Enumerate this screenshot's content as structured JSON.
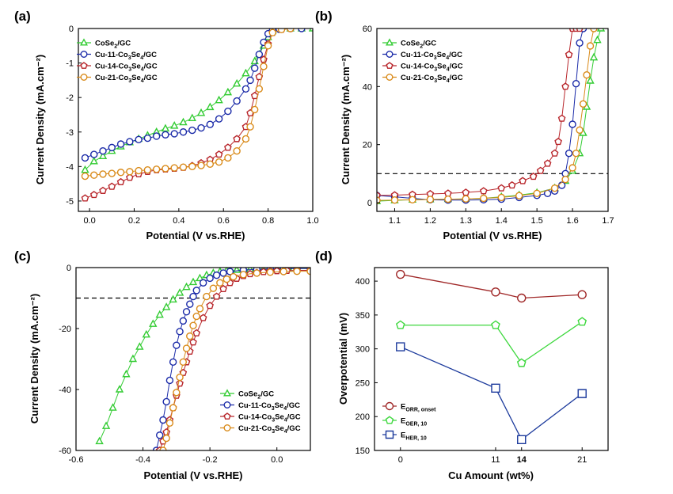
{
  "colors": {
    "green": "#33cc33",
    "blue": "#1a2aa8",
    "red": "#b8262b",
    "orange": "#d98a19",
    "dkred": "#a02828",
    "ltgreen": "#3ed83e",
    "navy": "#1c3a9c"
  },
  "chart_data": [
    {
      "id": "a",
      "panel_label": "(a)",
      "type": "line",
      "xlabel": "Potential (V vs.RHE)",
      "ylabel": "Current Density (mA.cm⁻²)",
      "xlim": [
        -0.05,
        1.0
      ],
      "ylim": [
        -5.3,
        0
      ],
      "xticks": [
        "0.0",
        "0.2",
        "0.4",
        "0.6",
        "0.8",
        "1.0"
      ],
      "yticks": [
        "0",
        "-1",
        "-2",
        "-3",
        "-4",
        "-5"
      ],
      "xtick_values": [
        0.0,
        0.2,
        0.4,
        0.6,
        0.8,
        1.0
      ],
      "ytick_values": [
        0,
        -1,
        -2,
        -3,
        -4,
        -5
      ],
      "legend_position": "top-left",
      "series": [
        {
          "name": "CoSe2/GC",
          "legend_text": "CoSe",
          "legend_sub": "2",
          "legend_tail": "/GC",
          "marker": "triangle",
          "color": "#33cc33",
          "x": [
            -0.02,
            0.02,
            0.06,
            0.1,
            0.14,
            0.18,
            0.22,
            0.26,
            0.3,
            0.34,
            0.38,
            0.42,
            0.46,
            0.5,
            0.54,
            0.58,
            0.62,
            0.66,
            0.7,
            0.74,
            0.76,
            0.78,
            0.8,
            0.82,
            0.85,
            0.9,
            0.95,
            1.0
          ],
          "y": [
            -4.1,
            -3.85,
            -3.7,
            -3.55,
            -3.42,
            -3.3,
            -3.2,
            -3.1,
            -3.0,
            -2.9,
            -2.82,
            -2.72,
            -2.6,
            -2.45,
            -2.28,
            -2.08,
            -1.85,
            -1.6,
            -1.3,
            -0.95,
            -0.75,
            -0.5,
            -0.25,
            -0.08,
            -0.02,
            0.0,
            0.0,
            0.0
          ]
        },
        {
          "name": "Cu-11-Co3Se4/GC",
          "legend_text": "Cu-11-Co",
          "legend_sub": "3",
          "legend_tail": "Se",
          "legend_sub2": "4",
          "legend_tail2": "/GC",
          "marker": "circle",
          "color": "#1a2aa8",
          "x": [
            -0.02,
            0.02,
            0.06,
            0.1,
            0.14,
            0.18,
            0.22,
            0.26,
            0.3,
            0.34,
            0.38,
            0.42,
            0.46,
            0.5,
            0.54,
            0.58,
            0.62,
            0.66,
            0.7,
            0.72,
            0.74,
            0.76,
            0.78,
            0.8,
            0.82,
            0.85,
            0.9,
            0.95
          ],
          "y": [
            -3.75,
            -3.65,
            -3.55,
            -3.45,
            -3.35,
            -3.28,
            -3.22,
            -3.18,
            -3.12,
            -3.08,
            -3.05,
            -3.0,
            -2.95,
            -2.88,
            -2.78,
            -2.62,
            -2.4,
            -2.1,
            -1.75,
            -1.5,
            -1.15,
            -0.75,
            -0.4,
            -0.15,
            -0.05,
            -0.02,
            0.0,
            0.0
          ]
        },
        {
          "name": "Cu-14-Co3Se4/GC",
          "legend_text": "Cu-14-Co",
          "legend_sub": "3",
          "legend_tail": "Se",
          "legend_sub2": "4",
          "legend_tail2": "/GC",
          "marker": "pentagon",
          "color": "#b8262b",
          "x": [
            -0.02,
            0.02,
            0.06,
            0.1,
            0.14,
            0.18,
            0.22,
            0.26,
            0.3,
            0.34,
            0.38,
            0.42,
            0.46,
            0.5,
            0.54,
            0.58,
            0.62,
            0.66,
            0.7,
            0.72,
            0.74,
            0.76,
            0.78,
            0.8,
            0.82,
            0.86,
            0.9
          ],
          "y": [
            -4.92,
            -4.82,
            -4.7,
            -4.58,
            -4.45,
            -4.32,
            -4.22,
            -4.15,
            -4.1,
            -4.08,
            -4.06,
            -4.03,
            -3.98,
            -3.9,
            -3.8,
            -3.65,
            -3.45,
            -3.2,
            -2.85,
            -2.45,
            -1.95,
            -1.4,
            -0.9,
            -0.45,
            -0.12,
            -0.03,
            0.0
          ]
        },
        {
          "name": "Cu-21-Co3Se4/GC",
          "legend_text": "Cu-21-Co",
          "legend_sub": "3",
          "legend_tail": "Se",
          "legend_sub2": "4",
          "legend_tail2": "/GC",
          "marker": "circle",
          "color": "#d98a19",
          "x": [
            -0.02,
            0.02,
            0.06,
            0.1,
            0.14,
            0.18,
            0.22,
            0.26,
            0.3,
            0.34,
            0.38,
            0.42,
            0.46,
            0.5,
            0.54,
            0.58,
            0.62,
            0.66,
            0.7,
            0.72,
            0.74,
            0.76,
            0.78,
            0.8,
            0.82,
            0.86,
            0.9
          ],
          "y": [
            -4.28,
            -4.25,
            -4.22,
            -4.2,
            -4.17,
            -4.15,
            -4.12,
            -4.1,
            -4.08,
            -4.06,
            -4.04,
            -4.02,
            -4.0,
            -3.97,
            -3.93,
            -3.87,
            -3.75,
            -3.55,
            -3.2,
            -2.85,
            -2.35,
            -1.75,
            -1.1,
            -0.5,
            -0.12,
            -0.03,
            0.0
          ]
        }
      ]
    },
    {
      "id": "b",
      "panel_label": "(b)",
      "type": "line",
      "xlabel": "Potential (V vs.RHE)",
      "ylabel": "Current Density (mA.cm⁻²)",
      "xlim": [
        1.05,
        1.7
      ],
      "ylim": [
        -3,
        60
      ],
      "xticks": [
        "1.1",
        "1.2",
        "1.3",
        "1.4",
        "1.5",
        "1.6",
        "1.7"
      ],
      "yticks": [
        "0",
        "20",
        "40",
        "60"
      ],
      "xtick_values": [
        1.1,
        1.2,
        1.3,
        1.4,
        1.5,
        1.6,
        1.7
      ],
      "ytick_values": [
        0,
        20,
        40,
        60
      ],
      "reference_line": 10,
      "legend_position": "top-left",
      "series": [
        {
          "name": "CoSe2/GC",
          "legend_text": "CoSe",
          "legend_sub": "2",
          "legend_tail": "/GC",
          "marker": "triangle",
          "color": "#33cc33",
          "x": [
            1.05,
            1.1,
            1.15,
            1.2,
            1.25,
            1.3,
            1.35,
            1.4,
            1.45,
            1.5,
            1.55,
            1.58,
            1.6,
            1.62,
            1.63,
            1.64,
            1.65,
            1.66,
            1.67,
            1.68
          ],
          "y": [
            0.5,
            0.8,
            1.0,
            1.1,
            1.2,
            1.3,
            1.5,
            2.0,
            2.6,
            3.4,
            5.0,
            7.5,
            11.0,
            17.0,
            24.0,
            33.0,
            42.0,
            50.0,
            56.0,
            60.0
          ]
        },
        {
          "name": "Cu-11-Co3Se4/GC",
          "legend_text": "Cu-11-Co",
          "legend_sub": "3",
          "legend_tail": "Se",
          "legend_sub2": "4",
          "legend_tail2": "/GC",
          "marker": "circle",
          "color": "#1a2aa8",
          "x": [
            1.05,
            1.1,
            1.15,
            1.2,
            1.25,
            1.3,
            1.35,
            1.4,
            1.45,
            1.5,
            1.53,
            1.55,
            1.57,
            1.58,
            1.59,
            1.6,
            1.61,
            1.62,
            1.63
          ],
          "y": [
            2.5,
            2.0,
            1.5,
            1.0,
            0.9,
            0.9,
            1.0,
            1.2,
            1.8,
            2.5,
            3.2,
            4.0,
            6.0,
            10.0,
            17.0,
            27.0,
            41.0,
            55.0,
            60.0
          ]
        },
        {
          "name": "Cu-14-Co3Se4/GC",
          "legend_text": "Cu-14-Co",
          "legend_sub": "3",
          "legend_tail": "Se",
          "legend_sub2": "4",
          "legend_tail2": "/GC",
          "marker": "pentagon",
          "color": "#b8262b",
          "x": [
            1.05,
            1.1,
            1.15,
            1.2,
            1.25,
            1.3,
            1.35,
            1.4,
            1.43,
            1.46,
            1.49,
            1.51,
            1.53,
            1.55,
            1.56,
            1.57,
            1.58,
            1.59,
            1.6,
            1.61,
            1.62
          ],
          "y": [
            2.5,
            2.6,
            2.8,
            3.0,
            3.2,
            3.5,
            4.0,
            5.0,
            6.0,
            7.5,
            9.0,
            11.0,
            13.5,
            17.0,
            21.0,
            29.0,
            40.0,
            51.0,
            60.0,
            60.0,
            60.0
          ]
        },
        {
          "name": "Cu-21-Co3Se4/GC",
          "legend_text": "Cu-21-Co",
          "legend_sub": "3",
          "legend_tail": "Se",
          "legend_sub2": "4",
          "legend_tail2": "/GC",
          "marker": "circle",
          "color": "#d98a19",
          "x": [
            1.05,
            1.1,
            1.15,
            1.2,
            1.25,
            1.3,
            1.35,
            1.4,
            1.45,
            1.5,
            1.55,
            1.58,
            1.6,
            1.61,
            1.62,
            1.63,
            1.64,
            1.65,
            1.66
          ],
          "y": [
            0.8,
            0.9,
            1.0,
            1.1,
            1.2,
            1.3,
            1.5,
            1.8,
            2.4,
            3.2,
            5.0,
            8.0,
            12.0,
            17.0,
            25.0,
            34.0,
            44.0,
            54.0,
            60.0
          ]
        }
      ]
    },
    {
      "id": "c",
      "panel_label": "(c)",
      "type": "line",
      "xlabel": "Potential (V vs.RHE)",
      "ylabel": "Current Density (mA.cm⁻²)",
      "xlim": [
        -0.6,
        0.1
      ],
      "ylim": [
        -60,
        0
      ],
      "xticks": [
        "-0.6",
        "-0.4",
        "-0.2",
        "0.0"
      ],
      "yticks": [
        "0",
        "-20",
        "-40",
        "-60"
      ],
      "xtick_values": [
        -0.6,
        -0.4,
        -0.2,
        0.0
      ],
      "ytick_values": [
        0,
        -20,
        -40,
        -60
      ],
      "reference_line": -10,
      "legend_position": "bottom-right",
      "series": [
        {
          "name": "CoSe2/GC",
          "legend_text": "CoSe",
          "legend_sub": "2",
          "legend_tail": "/GC",
          "marker": "triangle",
          "color": "#33cc33",
          "x": [
            -0.53,
            -0.51,
            -0.49,
            -0.47,
            -0.45,
            -0.43,
            -0.41,
            -0.39,
            -0.37,
            -0.35,
            -0.33,
            -0.31,
            -0.29,
            -0.27,
            -0.25,
            -0.23,
            -0.21,
            -0.19,
            -0.17,
            -0.15,
            -0.12,
            -0.08,
            -0.04,
            0.0,
            0.05,
            0.1
          ],
          "y": [
            -57.0,
            -52.0,
            -46.0,
            -40.0,
            -35.0,
            -30.0,
            -26.0,
            -22.0,
            -18.5,
            -15.5,
            -13.0,
            -10.5,
            -8.3,
            -6.4,
            -4.8,
            -3.5,
            -2.5,
            -1.8,
            -1.3,
            -1.0,
            -0.8,
            -0.6,
            -0.5,
            -0.4,
            -0.3,
            -0.3
          ]
        },
        {
          "name": "Cu-11-Co3Se4/GC",
          "legend_text": "Cu-11-Co",
          "legend_sub": "3",
          "legend_tail": "Se",
          "legend_sub2": "4",
          "legend_tail2": "/GC",
          "marker": "circle",
          "color": "#1a2aa8",
          "x": [
            -0.36,
            -0.35,
            -0.34,
            -0.33,
            -0.32,
            -0.31,
            -0.3,
            -0.29,
            -0.28,
            -0.27,
            -0.26,
            -0.25,
            -0.24,
            -0.22,
            -0.2,
            -0.18,
            -0.16,
            -0.14,
            -0.1,
            -0.06,
            -0.02,
            0.02,
            0.06,
            0.1
          ],
          "y": [
            -60.0,
            -55.0,
            -50.0,
            -44.0,
            -37.0,
            -31.0,
            -25.5,
            -21.0,
            -17.5,
            -14.5,
            -12.0,
            -9.5,
            -7.5,
            -5.0,
            -3.5,
            -2.5,
            -1.8,
            -1.3,
            -0.8,
            -0.6,
            -0.5,
            -0.4,
            -0.3,
            -0.3
          ]
        },
        {
          "name": "Cu-14-Co3Se4/GC",
          "legend_text": "Cu-14-Co",
          "legend_sub": "3",
          "legend_tail": "Se",
          "legend_sub2": "4",
          "legend_tail2": "/GC",
          "marker": "pentagon",
          "color": "#b8262b",
          "x": [
            -0.35,
            -0.34,
            -0.33,
            -0.32,
            -0.31,
            -0.3,
            -0.29,
            -0.28,
            -0.27,
            -0.26,
            -0.25,
            -0.24,
            -0.22,
            -0.2,
            -0.18,
            -0.16,
            -0.14,
            -0.12,
            -0.1,
            -0.08,
            -0.06,
            -0.04,
            -0.02,
            0.0,
            0.03,
            0.06,
            0.1
          ],
          "y": [
            -60.0,
            -57.0,
            -54.0,
            -50.0,
            -46.0,
            -42.0,
            -38.0,
            -34.5,
            -31.0,
            -27.5,
            -24.5,
            -21.5,
            -16.5,
            -12.5,
            -9.5,
            -7.0,
            -5.0,
            -3.6,
            -2.7,
            -2.1,
            -1.7,
            -1.4,
            -1.2,
            -1.1,
            -1.0,
            -0.9,
            -0.9
          ]
        },
        {
          "name": "Cu-21-Co3Se4/GC",
          "legend_text": "Cu-21-Co",
          "legend_sub": "3",
          "legend_tail": "Se",
          "legend_sub2": "4",
          "legend_tail2": "/GC",
          "marker": "circle",
          "color": "#d98a19",
          "x": [
            -0.34,
            -0.33,
            -0.32,
            -0.31,
            -0.3,
            -0.29,
            -0.28,
            -0.27,
            -0.26,
            -0.25,
            -0.24,
            -0.23,
            -0.21,
            -0.19,
            -0.17,
            -0.15,
            -0.13,
            -0.1,
            -0.06,
            -0.02,
            0.02,
            0.06,
            0.1
          ],
          "y": [
            -60.0,
            -56.0,
            -51.0,
            -46.0,
            -41.0,
            -36.0,
            -31.0,
            -26.5,
            -22.5,
            -19.0,
            -16.0,
            -13.5,
            -9.5,
            -6.8,
            -5.0,
            -3.8,
            -3.0,
            -2.3,
            -1.8,
            -1.5,
            -1.3,
            -1.2,
            -1.2
          ]
        }
      ]
    },
    {
      "id": "d",
      "panel_label": "(d)",
      "type": "line",
      "xlabel": "Cu Amount (wt%)",
      "ylabel": "Overpotential (mV)",
      "xlim": [
        -3,
        24
      ],
      "ylim": [
        150,
        420
      ],
      "xticks": [
        "0",
        "11",
        "14",
        "21"
      ],
      "xtick_values": [
        0,
        11,
        14,
        21
      ],
      "highlight_tick": "14",
      "highlight_color": "#d62020",
      "yticks": [
        "150",
        "200",
        "250",
        "300",
        "350",
        "400"
      ],
      "ytick_values": [
        150,
        200,
        250,
        300,
        350,
        400
      ],
      "legend_position": "bottom-left",
      "series": [
        {
          "name": "E ORR, onset",
          "legend_text": "E",
          "legend_sub": "ORR, onset",
          "marker": "circle",
          "color": "#a02828",
          "x": [
            0,
            11,
            14,
            21
          ],
          "y": [
            410,
            384,
            375,
            380
          ]
        },
        {
          "name": "E OER, 10",
          "legend_text": "E",
          "legend_sub": "OER, 10",
          "marker": "pentagon",
          "color": "#3ed83e",
          "x": [
            0,
            11,
            14,
            21
          ],
          "y": [
            335,
            335,
            279,
            340
          ]
        },
        {
          "name": "E HER, 10",
          "legend_text": "E",
          "legend_sub": "HER, 10",
          "marker": "square",
          "color": "#1c3a9c",
          "x": [
            0,
            11,
            14,
            21
          ],
          "y": [
            303,
            242,
            166,
            234
          ]
        }
      ]
    }
  ]
}
